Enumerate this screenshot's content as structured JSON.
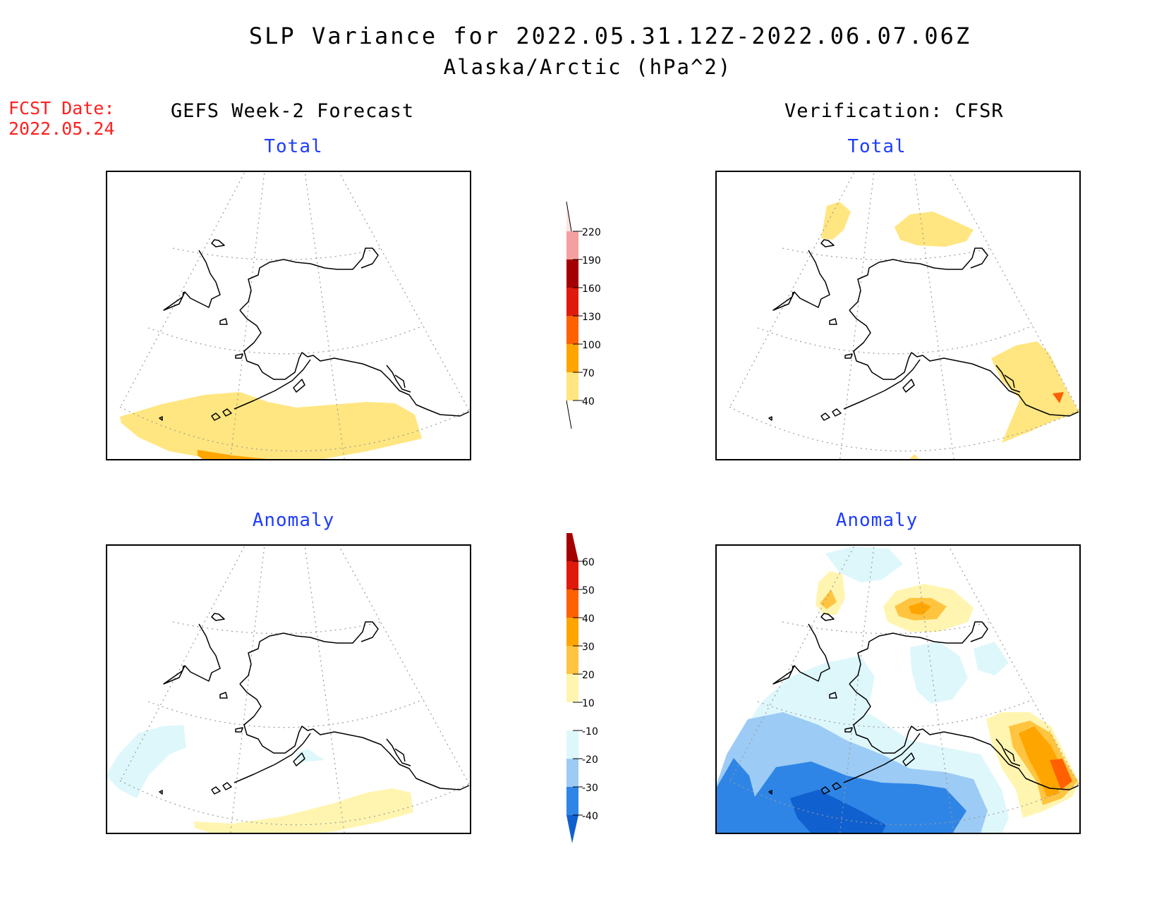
{
  "title": "SLP Variance for 2022.05.31.12Z-2022.06.07.06Z",
  "subtitle": "Alaska/Arctic (hPa^2)",
  "fcst_label": "FCST Date:",
  "fcst_date": "2022.05.24",
  "columns": {
    "left": "GEFS Week-2 Forecast",
    "right": "Verification: CFSR"
  },
  "panels": {
    "top_left": "Total",
    "top_right": "Total",
    "bottom_left": "Anomaly",
    "bottom_right": "Anomaly"
  },
  "colorbar_total": {
    "levels": [
      "40",
      "70",
      "100",
      "130",
      "160",
      "190",
      "220"
    ],
    "colors": [
      "#ffe680",
      "#ffa500",
      "#ff6000",
      "#e01a0a",
      "#a50000",
      "#f4a0a0",
      "#fde5e2"
    ]
  },
  "colorbar_anomaly": {
    "levels": [
      "-40",
      "-30",
      "-20",
      "-10",
      "10",
      "20",
      "30",
      "40",
      "50",
      "60"
    ],
    "colors": [
      "#1060d0",
      "#2f85e6",
      "#9ccbf5",
      "#def7fb",
      "#ffffff",
      "#fff5b0",
      "#ffc440",
      "#ffa500",
      "#ff6000",
      "#e01a0a",
      "#a50000"
    ]
  }
}
